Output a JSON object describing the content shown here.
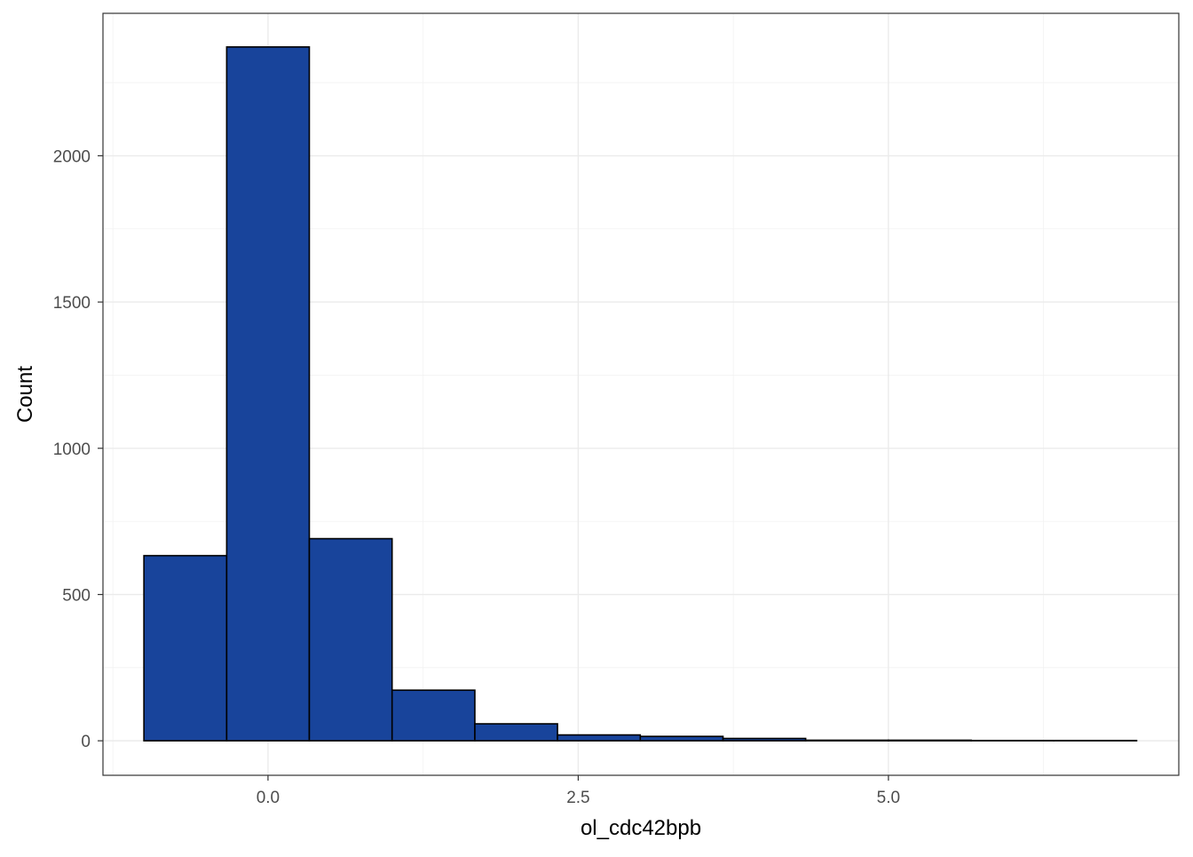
{
  "chart_data": {
    "type": "bar",
    "subtype": "histogram",
    "title": "",
    "xlabel": "ol_cdc42bpb",
    "ylabel": "Count",
    "bin_edges": [
      -1.0,
      -0.333,
      0.333,
      1.0,
      1.667,
      2.333,
      3.0,
      3.667,
      4.333,
      5.0,
      5.667,
      6.333,
      7.0
    ],
    "values": [
      633,
      2372,
      691,
      173,
      58,
      20,
      15,
      8,
      2,
      2,
      1,
      1
    ],
    "xlim": [
      -1.33,
      7.34
    ],
    "ylim": [
      -118,
      2487
    ],
    "x_ticks": [
      0.0,
      2.5,
      5.0
    ],
    "x_tick_labels": [
      "0.0",
      "2.5",
      "5.0"
    ],
    "y_ticks": [
      0,
      500,
      1000,
      1500,
      2000
    ],
    "y_tick_labels": [
      "0",
      "500",
      "1000",
      "1500",
      "2000"
    ],
    "grid": true,
    "legend": "none",
    "bar_color": "#18449B",
    "bar_border_color": "#000000",
    "panel_border_color": "#333333",
    "grid_color": "#EBEBEB"
  }
}
